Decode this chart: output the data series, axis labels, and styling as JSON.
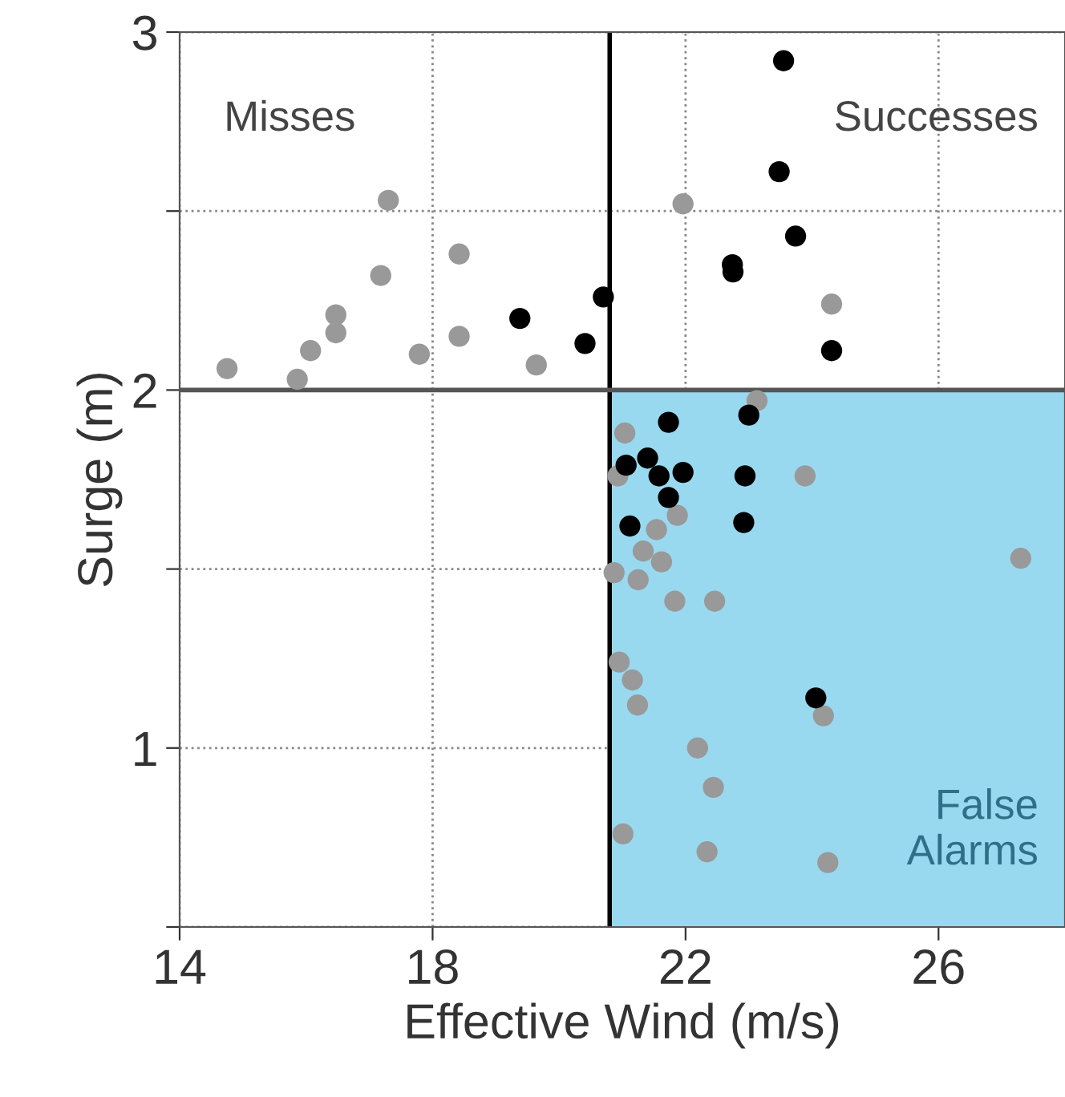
{
  "chart_data": {
    "type": "scatter",
    "xlabel": "Effective Wind (m/s)",
    "ylabel": "Surge (m)",
    "xlim": [
      14,
      28
    ],
    "ylim": [
      0.5,
      3
    ],
    "xticks": [
      14,
      18,
      22,
      26
    ],
    "yticks": [
      {
        "value": 0.5,
        "label": null
      },
      1,
      {
        "value": 1.5,
        "label": null
      },
      2,
      {
        "value": 2.5,
        "label": null
      },
      3
    ],
    "grid": true,
    "marker": "circle",
    "legend": false,
    "annotations": [
      "Misses",
      "Successes",
      "False Alarms"
    ],
    "ref_lines": [
      {
        "axis": "x",
        "value": 20.8,
        "label": null,
        "color": "#000000"
      },
      {
        "axis": "y",
        "value": 2,
        "label": null,
        "color": "#555555"
      }
    ],
    "bands": [
      {
        "axis": "x",
        "from": 20.8,
        "to": 28,
        "label": null,
        "color": "#99d9f0"
      }
    ],
    "series": [
      {
        "color": "#999999",
        "x": [
          14.75,
          15.86,
          16.07,
          16.47,
          16.47,
          17.18,
          17.3,
          17.79,
          18.42,
          18.42,
          19.64,
          21.96,
          24.31,
          23.13,
          21.04,
          20.93,
          23.89,
          21.87,
          21.54,
          21.33,
          21.62,
          20.87,
          21.25,
          27.3,
          21.83,
          22.46,
          20.95,
          21.16,
          21.24,
          24.18,
          22.19,
          22.44,
          21.01,
          22.34,
          24.25
        ],
        "values": [
          2.06,
          2.03,
          2.11,
          2.21,
          2.16,
          2.32,
          2.53,
          2.1,
          2.38,
          2.15,
          2.07,
          2.52,
          2.24,
          1.97,
          1.88,
          1.76,
          1.76,
          1.65,
          1.61,
          1.55,
          1.52,
          1.49,
          1.47,
          1.53,
          1.41,
          1.41,
          1.24,
          1.19,
          1.12,
          1.09,
          1.0,
          0.89,
          0.76,
          0.71,
          0.68
        ]
      },
      {
        "color": "#000000",
        "x": [
          19.38,
          20.41,
          20.7,
          23.55,
          23.48,
          23.74,
          22.74,
          22.75,
          24.31,
          23.0,
          21.73,
          21.4,
          21.06,
          21.58,
          21.96,
          22.94,
          21.73,
          21.12,
          22.92,
          24.06
        ],
        "values": [
          2.2,
          2.13,
          2.26,
          2.92,
          2.61,
          2.43,
          2.35,
          2.33,
          2.11,
          1.93,
          1.91,
          1.81,
          1.79,
          1.76,
          1.77,
          1.76,
          1.7,
          1.62,
          1.63,
          1.14
        ]
      }
    ]
  }
}
